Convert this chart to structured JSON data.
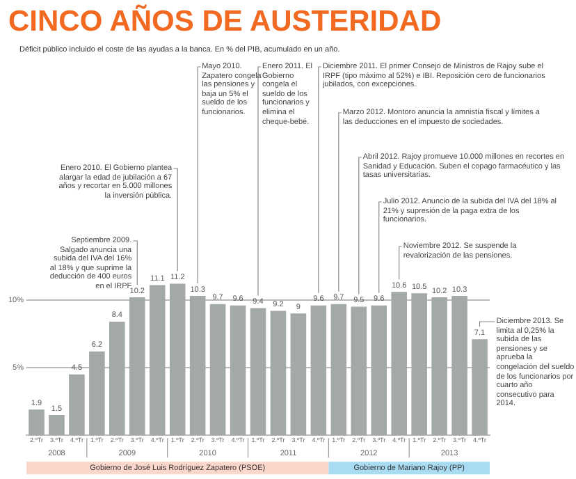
{
  "chart_data": {
    "type": "bar",
    "title": "CINCO AÑOS DE AUSTERIDAD",
    "subtitle": "Déficit público incluido el coste de las ayudas a la banca. En % del PIB, acumulado en un año.",
    "categories": [
      "2.ºTr",
      "3.ºTr",
      "4.ºTr",
      "1.ºTr",
      "2.ºTr",
      "3.ºTr",
      "4.ºTr",
      "1.ºTr",
      "2.ºTr",
      "3.ºTr",
      "4.ºTr",
      "1.ºTr",
      "2.ºTr",
      "3.ºTr",
      "4.ºTr",
      "1.ºTr",
      "2.ºTr",
      "3.ºTr",
      "4.ºTr",
      "1.ºTr",
      "2.ºTr",
      "3.ºTr",
      "4.ºTr"
    ],
    "values": [
      1.9,
      1.5,
      4.5,
      6.2,
      8.4,
      10.2,
      11.1,
      11.2,
      10.3,
      9.7,
      9.6,
      9.4,
      9.2,
      9.0,
      9.6,
      9.7,
      9.5,
      9.6,
      10.6,
      10.5,
      10.2,
      10.3,
      7.1
    ],
    "color": "#a3a9a7",
    "data_labels": true,
    "grid": "y",
    "ylim": [
      0,
      12
    ],
    "yticks": [
      {
        "value": 5,
        "label": "5%"
      },
      {
        "value": 10,
        "label": "10%"
      }
    ],
    "annotations": [
      "2008",
      "2009",
      "2010",
      "2011",
      "2012",
      "2013",
      "Gobierno de José Luis Rodríguez Zapatero (PSOE)",
      "Gobierno de Mariano Rajoy (PP)",
      "Septiembre 2009. Salgado anuncia una subida del IVA del 16% al 18% y que suprime la deducción de 400 euros en el IRPF",
      "Enero 2010. El Gobierno plantea alargar la edad de jubilación a 67 años y recortar en 5.000 millones la inversión pública.",
      "Mayo 2010. Zapatero congela las pensiones y baja un 5% el sueldo de los funcionarios.",
      "Enero 2011. El Gobierno congela el sueldo de los funcionarios y elimina el cheque-bebé.",
      "Diciembre 2011. El primer Consejo de Ministros de Rajoy sube el IRPF (tipo máximo al 52%) e IBI. Reposición cero de funcionarios jubilados, con excepciones.",
      "Marzo 2012. Montoro anuncia la amnistía fiscal y límites a las deducciones en el impuesto de sociedades.",
      "Abril 2012. Rajoy promueve 10.000 millones en recortes en Sanidad y Educación. Suben el copago farmacéutico y las tasas universitarias.",
      "Julio 2012. Anuncio de la subida del IVA del 18% al 21% y supresión de la paga extra de los funcionarios.",
      "Noviembre 2012. Se suspende la revalorización de las pensiones.",
      "Diciembre 2013. Se limita al 0,25% la subida de las pensiones y se aprueba la congelación del sueldo de los funcionarios por cuarto año consecutivo para 2014."
    ]
  }
}
